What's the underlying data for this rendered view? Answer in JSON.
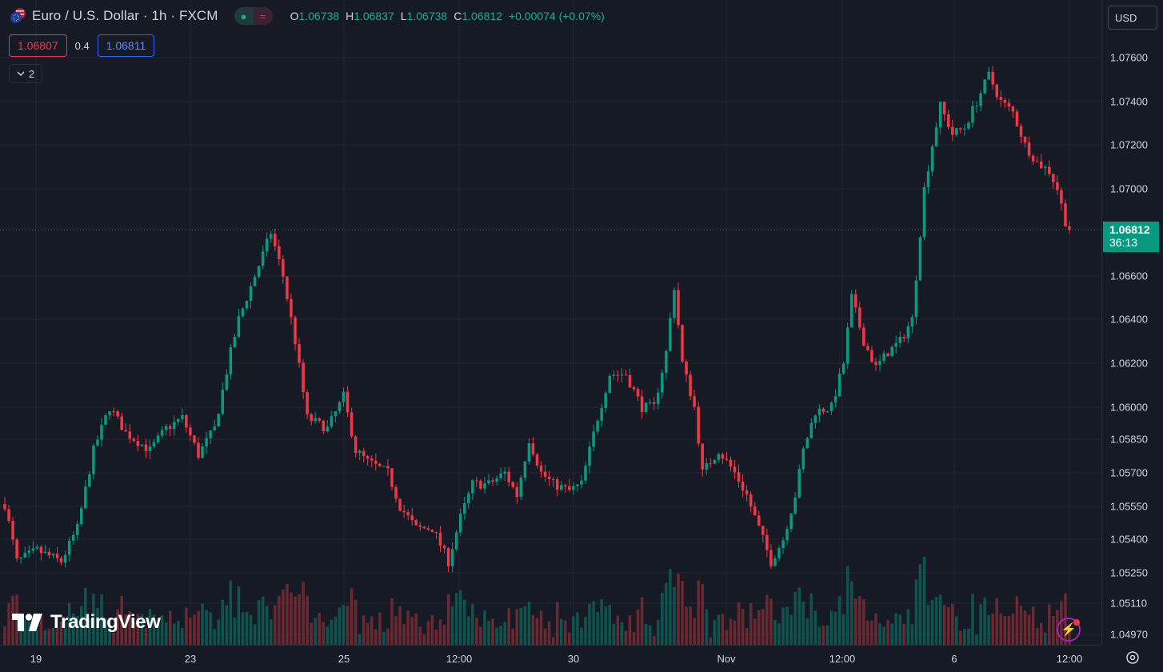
{
  "header": {
    "title": "Euro / U.S. Dollar · 1h · FXCM",
    "ohlc": [
      {
        "key": "O",
        "value": "1.06738"
      },
      {
        "key": "H",
        "value": "1.06837"
      },
      {
        "key": "L",
        "value": "1.06738"
      },
      {
        "key": "C",
        "value": "1.06812"
      }
    ],
    "change": "+0.00074 (+0.07%)",
    "status_icons": [
      "market-open-dot-icon",
      "wave-icon"
    ]
  },
  "quote": {
    "bid": "1.06807",
    "spread": "0.4",
    "ask": "1.06811"
  },
  "collapse": {
    "count": "2"
  },
  "currency": "USD",
  "last_price": {
    "price": "1.06812",
    "countdown": "36:13"
  },
  "logo_text": "TradingView",
  "colors": {
    "up": "#089981",
    "down": "#f23645",
    "background": "#161a25",
    "grid": "#232632"
  },
  "chart_data": {
    "type": "candlestick",
    "symbol": "EURUSD",
    "interval": "1h",
    "y_axis": {
      "ticks": [
        "1.07600",
        "1.07400",
        "1.07200",
        "1.07000",
        "1.06600",
        "1.06400",
        "1.06200",
        "1.06000",
        "1.05850",
        "1.05700",
        "1.05550",
        "1.05400",
        "1.05250",
        "1.05110",
        "1.04970"
      ],
      "ylim": [
        1.0491,
        1.0772
      ],
      "position": "right"
    },
    "x_axis": {
      "ticks": [
        "19",
        "23",
        "25",
        "12:00",
        "30",
        "Nov",
        "12:00",
        "6",
        "12:00"
      ]
    },
    "grid": true,
    "last_price": 1.06812,
    "price_path": [
      {
        "t": 0,
        "p": 1.0556
      },
      {
        "t": 3,
        "p": 1.053
      },
      {
        "t": 8,
        "p": 1.0535
      },
      {
        "t": 14,
        "p": 1.053
      },
      {
        "t": 18,
        "p": 1.0545
      },
      {
        "t": 22,
        "p": 1.058
      },
      {
        "t": 26,
        "p": 1.06
      },
      {
        "t": 30,
        "p": 1.0588
      },
      {
        "t": 36,
        "p": 1.058
      },
      {
        "t": 40,
        "p": 1.059
      },
      {
        "t": 44,
        "p": 1.0595
      },
      {
        "t": 48,
        "p": 1.0578
      },
      {
        "t": 52,
        "p": 1.059
      },
      {
        "t": 56,
        "p": 1.0625
      },
      {
        "t": 58,
        "p": 1.064
      },
      {
        "t": 64,
        "p": 1.067
      },
      {
        "t": 66,
        "p": 1.068
      },
      {
        "t": 69,
        "p": 1.066
      },
      {
        "t": 72,
        "p": 1.063
      },
      {
        "t": 75,
        "p": 1.0595
      },
      {
        "t": 80,
        "p": 1.059
      },
      {
        "t": 84,
        "p": 1.0605
      },
      {
        "t": 87,
        "p": 1.058
      },
      {
        "t": 90,
        "p": 1.0575
      },
      {
        "t": 95,
        "p": 1.057
      },
      {
        "t": 98,
        "p": 1.0555
      },
      {
        "t": 102,
        "p": 1.0545
      },
      {
        "t": 106,
        "p": 1.0545
      },
      {
        "t": 110,
        "p": 1.053
      },
      {
        "t": 113,
        "p": 1.055
      },
      {
        "t": 116,
        "p": 1.0565
      },
      {
        "t": 120,
        "p": 1.0565
      },
      {
        "t": 124,
        "p": 1.057
      },
      {
        "t": 127,
        "p": 1.056
      },
      {
        "t": 130,
        "p": 1.0585
      },
      {
        "t": 133,
        "p": 1.057
      },
      {
        "t": 136,
        "p": 1.0565
      },
      {
        "t": 140,
        "p": 1.0562
      },
      {
        "t": 143,
        "p": 1.0565
      },
      {
        "t": 147,
        "p": 1.0595
      },
      {
        "t": 150,
        "p": 1.0615
      },
      {
        "t": 154,
        "p": 1.0615
      },
      {
        "t": 158,
        "p": 1.06
      },
      {
        "t": 161,
        "p": 1.06
      },
      {
        "t": 164,
        "p": 1.0625
      },
      {
        "t": 166,
        "p": 1.0655
      },
      {
        "t": 168,
        "p": 1.062
      },
      {
        "t": 171,
        "p": 1.06
      },
      {
        "t": 173,
        "p": 1.057
      },
      {
        "t": 177,
        "p": 1.058
      },
      {
        "t": 181,
        "p": 1.057
      },
      {
        "t": 184,
        "p": 1.056
      },
      {
        "t": 187,
        "p": 1.0545
      },
      {
        "t": 190,
        "p": 1.053
      },
      {
        "t": 193,
        "p": 1.054
      },
      {
        "t": 196,
        "p": 1.056
      },
      {
        "t": 198,
        "p": 1.058
      },
      {
        "t": 201,
        "p": 1.0598
      },
      {
        "t": 205,
        "p": 1.06
      },
      {
        "t": 208,
        "p": 1.062
      },
      {
        "t": 210,
        "p": 1.065
      },
      {
        "t": 213,
        "p": 1.063
      },
      {
        "t": 216,
        "p": 1.0618
      },
      {
        "t": 219,
        "p": 1.0625
      },
      {
        "t": 222,
        "p": 1.063
      },
      {
        "t": 225,
        "p": 1.064
      },
      {
        "t": 228,
        "p": 1.07
      },
      {
        "t": 230,
        "p": 1.072
      },
      {
        "t": 232,
        "p": 1.0738
      },
      {
        "t": 235,
        "p": 1.0725
      },
      {
        "t": 238,
        "p": 1.0728
      },
      {
        "t": 241,
        "p": 1.074
      },
      {
        "t": 244,
        "p": 1.0752
      },
      {
        "t": 247,
        "p": 1.074
      },
      {
        "t": 250,
        "p": 1.0735
      },
      {
        "t": 253,
        "p": 1.072
      },
      {
        "t": 256,
        "p": 1.0712
      },
      {
        "t": 259,
        "p": 1.0708
      },
      {
        "t": 261,
        "p": 1.07
      },
      {
        "t": 263,
        "p": 1.0685
      },
      {
        "t": 264,
        "p": 1.06812
      }
    ],
    "volume": {
      "shown": true,
      "position": "bottom"
    }
  }
}
